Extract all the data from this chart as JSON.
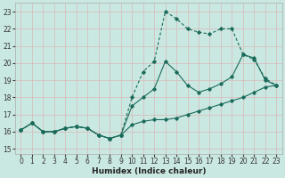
{
  "xlabel": "Humidex (Indice chaleur)",
  "bg_color": "#cae8e2",
  "grid_color": "#b8d8d2",
  "line_color": "#1a6b5a",
  "xlim": [
    -0.5,
    23.5
  ],
  "ylim": [
    14.7,
    23.5
  ],
  "xticks": [
    0,
    1,
    2,
    3,
    4,
    5,
    6,
    7,
    8,
    9,
    10,
    11,
    12,
    13,
    14,
    15,
    16,
    17,
    18,
    19,
    20,
    21,
    22,
    23
  ],
  "yticks": [
    15,
    16,
    17,
    18,
    19,
    20,
    21,
    22,
    23
  ],
  "line1_x": [
    0,
    1,
    2,
    3,
    4,
    5,
    6,
    7,
    8,
    9,
    10,
    11,
    12,
    13,
    14,
    15,
    16,
    17,
    18,
    19,
    20,
    21,
    22,
    23
  ],
  "line1_y": [
    16.1,
    16.5,
    16.0,
    16.0,
    16.2,
    16.3,
    16.2,
    15.8,
    15.6,
    15.8,
    16.4,
    16.6,
    16.7,
    16.7,
    16.8,
    17.0,
    17.2,
    17.4,
    17.6,
    17.8,
    18.0,
    18.3,
    18.6,
    18.7
  ],
  "line2_x": [
    0,
    1,
    2,
    3,
    4,
    5,
    6,
    7,
    8,
    9,
    10,
    11,
    12,
    13,
    14,
    15,
    16,
    17,
    18,
    19,
    20,
    21,
    22,
    23
  ],
  "line2_y": [
    16.1,
    16.5,
    16.0,
    16.0,
    16.2,
    16.3,
    16.2,
    15.8,
    15.6,
    15.8,
    17.5,
    18.0,
    18.5,
    20.1,
    19.5,
    18.7,
    18.3,
    18.5,
    18.8,
    19.2,
    20.5,
    20.3,
    19.0,
    18.7
  ],
  "line3_x": [
    0,
    1,
    2,
    3,
    4,
    5,
    6,
    7,
    8,
    9,
    10,
    11,
    12,
    13,
    14,
    15,
    16,
    17,
    18,
    19,
    20,
    21,
    22,
    23
  ],
  "line3_y": [
    16.1,
    16.5,
    16.0,
    16.0,
    16.2,
    16.3,
    16.2,
    15.8,
    15.6,
    15.8,
    18.0,
    19.5,
    20.1,
    23.0,
    22.6,
    22.0,
    21.8,
    21.7,
    22.0,
    22.0,
    20.5,
    20.2,
    19.1,
    18.7
  ],
  "tickfontsize": 5.5,
  "labelfontsize": 6.5
}
